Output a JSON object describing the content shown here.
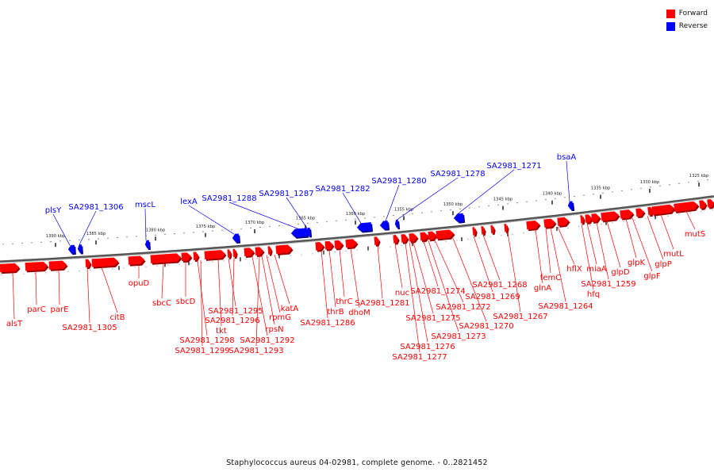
{
  "colors": {
    "forward": "#ff0000",
    "reverse": "#0000ff"
  },
  "legend": [
    {
      "label": "Forward",
      "color": "#ff0000"
    },
    {
      "label": "Reverse",
      "color": "#0000ff"
    }
  ],
  "caption": "Staphylococcus aureus 04-02981, complete genome. - 0..2821452",
  "scale_labels": [
    "1390 kbp",
    "1385 kbp",
    "1380 kbp",
    "1375 kbp",
    "1370 kbp",
    "1365 kbp",
    "1360 kbp",
    "1355 kbp",
    "1350 kbp",
    "1345 kbp",
    "1340 kbp",
    "1335 kbp",
    "1330 kbp",
    "1325 kbp"
  ],
  "reverse_labels": [
    "plsY",
    "SA2981_1306",
    "mscL",
    "lexA",
    "SA2981_1288",
    "SA2981_1287",
    "SA2981_1282",
    "SA2981_1280",
    "SA2981_1278",
    "SA2981_1271",
    "bsaA"
  ],
  "forward_labels": [
    "alsT",
    "parC",
    "parE",
    "SA2981_1305",
    "citB",
    "opuD",
    "sbcC",
    "sbcD",
    "SA2981_1298",
    "SA2981_1299",
    "tkt",
    "SA2981_1295",
    "SA2981_1296",
    "SA2981_1292",
    "SA2981_1293",
    "rpsN",
    "rpmG",
    "katA",
    "SA2981_1286",
    "thrB",
    "thrC",
    "dhoM",
    "SA2981_1281",
    "nuc",
    "SA2981_1277",
    "SA2981_1276",
    "SA2981_1275",
    "SA2981_1274",
    "SA2981_1273",
    "SA2981_1272",
    "SA2981_1270",
    "SA2981_1269",
    "SA2981_1268",
    "SA2981_1267",
    "glnA",
    "femC",
    "SA2981_1264",
    "hflX",
    "hfq",
    "miaA",
    "SA2981_1259",
    "glpD",
    "glpK",
    "glpF",
    "glpP",
    "mutL",
    "mutS"
  ]
}
